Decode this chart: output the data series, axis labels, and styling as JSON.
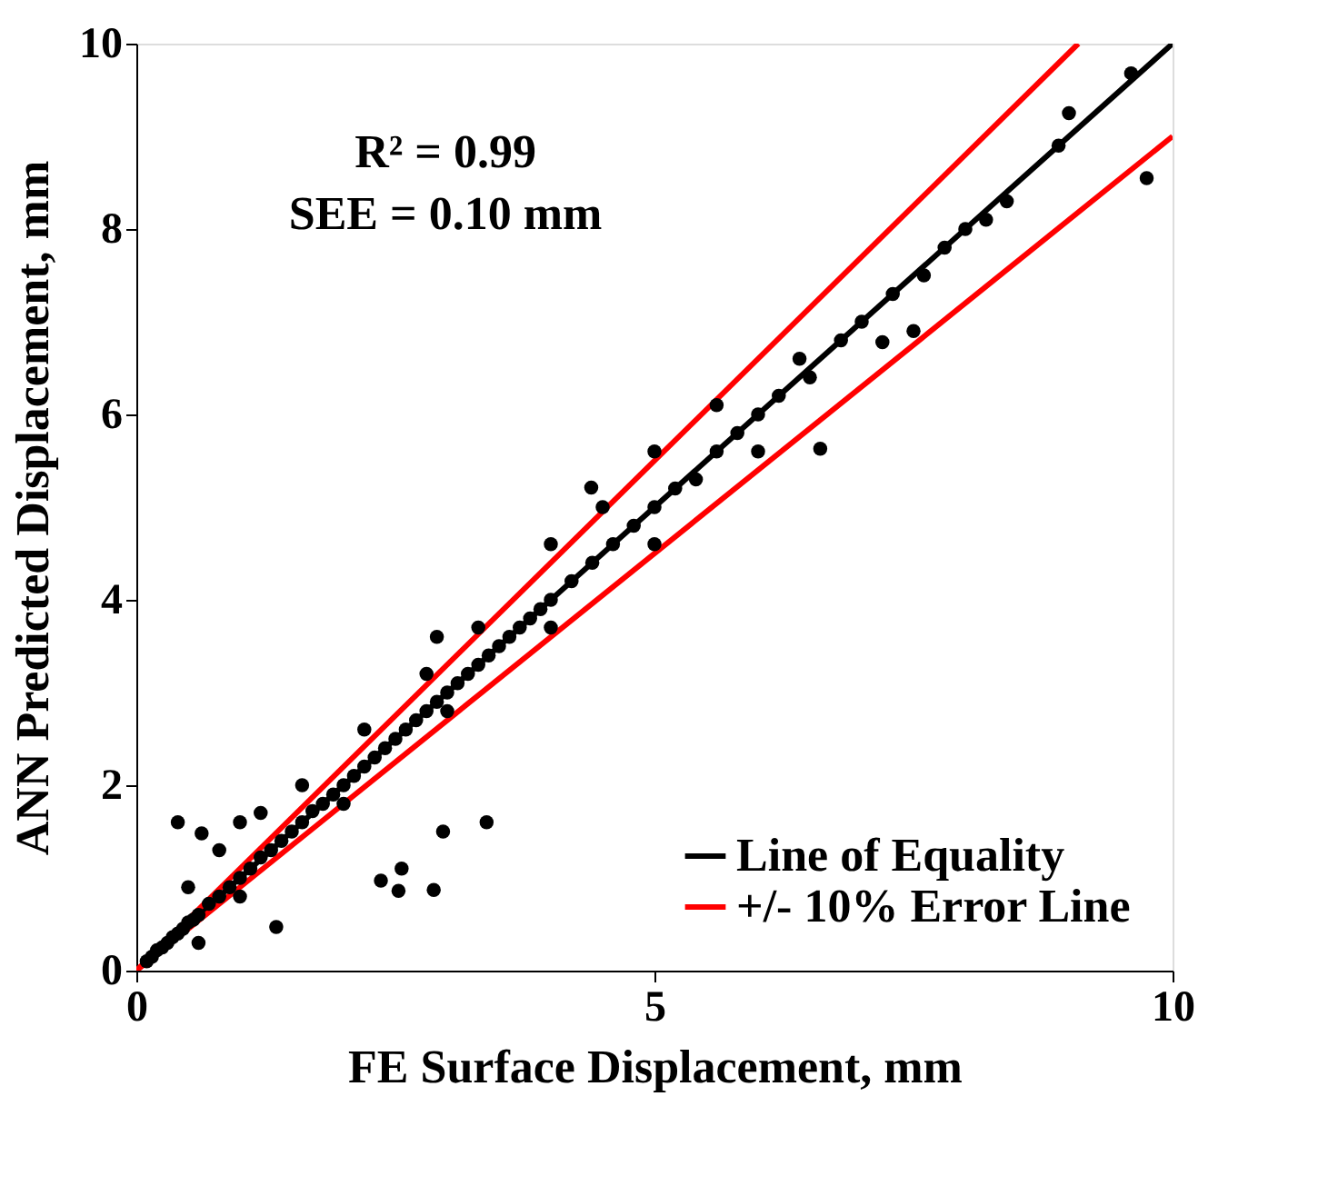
{
  "chart_data": {
    "type": "scatter",
    "xlabel": "FE Surface Displacement, mm",
    "ylabel": "ANN Predicted Displacement, mm",
    "annotations": [
      "R² = 0.99",
      "SEE = 0.10 mm"
    ],
    "xlim": [
      0,
      10
    ],
    "ylim": [
      0,
      10
    ],
    "xticks": [
      0,
      5,
      10
    ],
    "yticks": [
      0,
      2,
      4,
      6,
      8,
      10
    ],
    "grid": false,
    "legend": "bottom right",
    "marker": "circle",
    "series": [
      {
        "color": "#000000",
        "x": [
          0.1,
          0.15,
          0.2,
          0.25,
          0.3,
          0.35,
          0.4,
          0.45,
          0.5,
          0.55,
          0.6,
          0.7,
          0.8,
          0.9,
          1.0,
          1.1,
          1.2,
          1.3,
          1.4,
          1.5,
          1.6,
          1.7,
          1.8,
          1.9,
          2.0,
          2.1,
          2.2,
          2.3,
          2.4,
          2.5,
          2.6,
          2.7,
          2.8,
          2.9,
          3.0,
          3.1,
          3.2,
          3.3,
          3.4,
          3.5,
          3.6,
          3.7,
          3.8,
          3.9,
          4.0,
          4.2,
          4.4,
          4.6,
          4.8,
          5.0,
          5.2,
          5.4,
          5.6,
          5.8,
          6.0,
          6.2,
          6.5,
          6.8,
          7.0,
          7.3,
          7.6,
          7.8,
          8.0,
          8.2,
          8.4,
          8.9,
          0.5,
          0.8,
          1.0,
          1.2,
          1.6,
          2.2,
          2.8,
          3.3,
          4.0,
          4.5,
          5.0,
          5.6,
          6.4,
          0.6,
          1.0,
          2.0,
          3.0,
          4.0,
          5.0,
          6.0,
          7.5,
          1.35,
          2.36,
          2.53,
          2.56,
          2.87,
          2.96,
          3.38,
          0.63,
          0.4,
          4.39,
          2.9,
          6.6,
          7.2,
          9.6,
          9.0,
          9.75
        ],
        "values": [
          0.1,
          0.15,
          0.22,
          0.25,
          0.3,
          0.36,
          0.4,
          0.45,
          0.52,
          0.55,
          0.6,
          0.72,
          0.8,
          0.9,
          1.0,
          1.1,
          1.22,
          1.3,
          1.4,
          1.5,
          1.6,
          1.72,
          1.8,
          1.9,
          2.0,
          2.1,
          2.2,
          2.3,
          2.4,
          2.5,
          2.6,
          2.7,
          2.8,
          2.9,
          3.0,
          3.1,
          3.2,
          3.3,
          3.4,
          3.5,
          3.6,
          3.7,
          3.8,
          3.9,
          4.0,
          4.2,
          4.4,
          4.6,
          4.8,
          5.0,
          5.2,
          5.3,
          5.6,
          5.8,
          6.0,
          6.2,
          6.4,
          6.8,
          7.0,
          7.3,
          7.5,
          7.8,
          8.0,
          8.1,
          8.3,
          8.9,
          0.9,
          1.3,
          1.6,
          1.7,
          2.0,
          2.6,
          3.2,
          3.7,
          4.6,
          5.0,
          5.6,
          6.1,
          6.6,
          0.3,
          0.8,
          1.8,
          2.8,
          3.7,
          4.6,
          5.6,
          6.9,
          0.47,
          0.97,
          0.86,
          1.1,
          0.87,
          1.5,
          1.6,
          1.48,
          1.6,
          5.21,
          3.6,
          5.63,
          6.78,
          9.68,
          9.25,
          8.55
        ]
      },
      {
        "type": "line",
        "name": "Line of Equality",
        "color": "#000000",
        "marker": "none",
        "x": [
          0,
          10
        ],
        "values": [
          0,
          10
        ]
      },
      {
        "type": "line",
        "name": "+/- 10% Error Line",
        "color": "#ff0000",
        "marker": "none",
        "x": [
          0,
          9.09
        ],
        "values": [
          0,
          10
        ]
      },
      {
        "type": "line",
        "color": "#ff0000",
        "marker": "none",
        "x": [
          0,
          10
        ],
        "values": [
          0,
          9
        ]
      }
    ]
  }
}
